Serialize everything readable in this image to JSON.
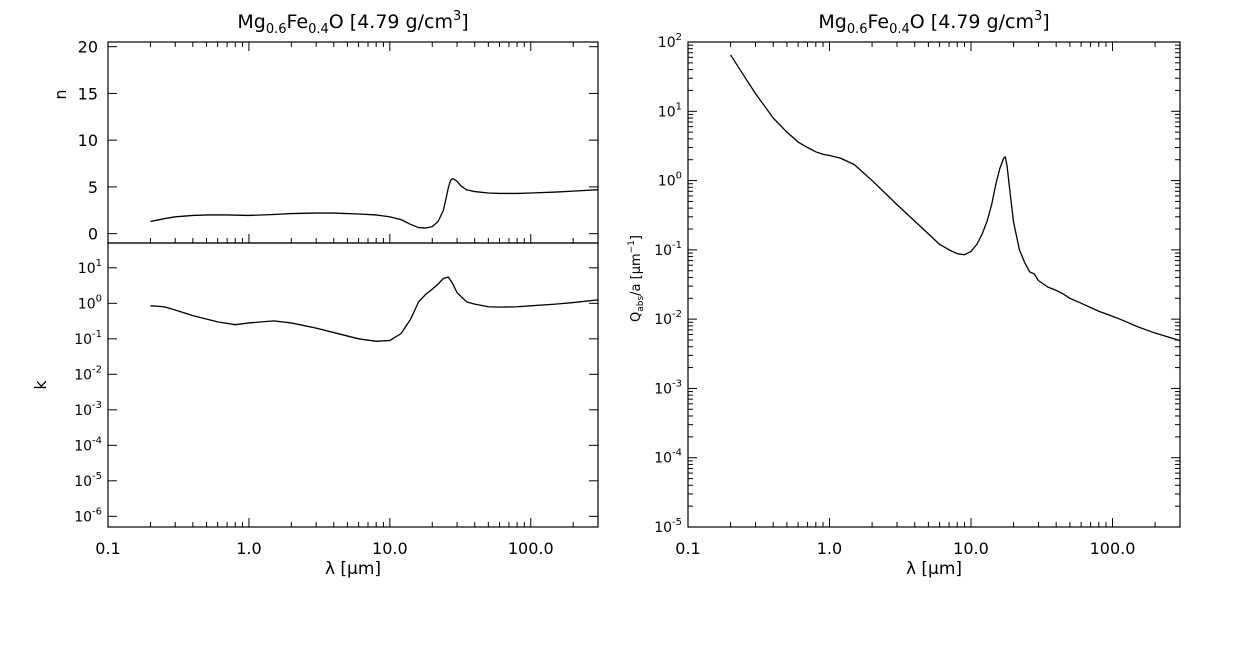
{
  "chart_data": [
    {
      "id": "n-panel",
      "type": "line",
      "title": {
        "base": "Mg",
        "sub1": "0.6",
        "mid": "Fe",
        "sub2": "0.4",
        "tail": "O [4.79 g/cm",
        "sup": "3",
        "end": "]"
      },
      "xlabel": "",
      "ylabel": "n",
      "xscale": "log",
      "yscale": "linear",
      "xlim": [
        0.1,
        300
      ],
      "ylim": [
        -1,
        20.5
      ],
      "x_tick_labels": [],
      "y_ticks": [
        0,
        5,
        10,
        15,
        20
      ],
      "y_tick_labels": [
        "0",
        "5",
        "10",
        "15",
        "20"
      ],
      "series": [
        {
          "x": [
            0.2,
            0.25,
            0.3,
            0.4,
            0.5,
            0.7,
            1.0,
            1.5,
            2.0,
            3.0,
            4.0,
            6.0,
            8.0,
            10.0,
            12.0,
            14.0,
            16.0,
            18.0,
            20.0,
            22.0,
            24.0,
            25.0,
            26.0,
            27.0,
            28.0,
            30.0,
            32.0,
            35.0,
            40.0,
            50.0,
            60.0,
            80.0,
            100.0,
            150.0,
            200.0,
            300.0
          ],
          "y": [
            1.3,
            1.6,
            1.8,
            1.95,
            2.0,
            2.0,
            1.95,
            2.05,
            2.15,
            2.2,
            2.2,
            2.1,
            2.0,
            1.8,
            1.5,
            1.0,
            0.65,
            0.6,
            0.75,
            1.3,
            2.5,
            3.7,
            4.9,
            5.7,
            5.9,
            5.6,
            5.1,
            4.7,
            4.5,
            4.35,
            4.3,
            4.3,
            4.35,
            4.45,
            4.55,
            4.7
          ]
        }
      ]
    },
    {
      "id": "k-panel",
      "type": "line",
      "title": "",
      "xlabel": "λ [μm]",
      "ylabel": "k",
      "xscale": "log",
      "yscale": "log",
      "xlim": [
        0.1,
        300
      ],
      "ylim": [
        5e-07,
        50
      ],
      "x_ticks": [
        0.1,
        1.0,
        10.0,
        100.0
      ],
      "x_tick_labels": [
        "0.1",
        "1.0",
        "10.0",
        "100.0"
      ],
      "y_ticks": [
        1e-06,
        1e-05,
        0.0001,
        0.001,
        0.01,
        0.1,
        1,
        10
      ],
      "y_tick_exponents": [
        "-6",
        "-5",
        "-4",
        "-3",
        "-2",
        "-1",
        "0",
        "1"
      ],
      "y_tick_base": "10",
      "series": [
        {
          "x": [
            0.2,
            0.25,
            0.3,
            0.4,
            0.6,
            0.8,
            1.0,
            1.5,
            2.0,
            3.0,
            4.0,
            6.0,
            8.0,
            10.0,
            12.0,
            14.0,
            16.0,
            18.0,
            20.0,
            22.0,
            24.0,
            26.0,
            28.0,
            30.0,
            35.0,
            40.0,
            50.0,
            60.0,
            80.0,
            100.0,
            150.0,
            200.0,
            300.0
          ],
          "y": [
            0.85,
            0.8,
            0.65,
            0.45,
            0.3,
            0.25,
            0.28,
            0.32,
            0.28,
            0.2,
            0.15,
            0.1,
            0.085,
            0.09,
            0.14,
            0.35,
            1.1,
            1.8,
            2.5,
            3.5,
            5.0,
            5.5,
            3.5,
            2.0,
            1.1,
            0.95,
            0.8,
            0.78,
            0.8,
            0.85,
            0.95,
            1.05,
            1.25
          ]
        }
      ]
    },
    {
      "id": "qabs-panel",
      "type": "line",
      "title": {
        "base": "Mg",
        "sub1": "0.6",
        "mid": "Fe",
        "sub2": "0.4",
        "tail": "O [4.79 g/cm",
        "sup": "3",
        "end": "]"
      },
      "xlabel": "λ [μm]",
      "ylabel": {
        "q": "Q",
        "qsub": "abs",
        "rest": "/a [μm",
        "sup": "−1",
        "end": "]"
      },
      "xscale": "log",
      "yscale": "log",
      "xlim": [
        0.1,
        300
      ],
      "ylim": [
        1e-05,
        100
      ],
      "x_ticks": [
        0.1,
        1.0,
        10.0,
        100.0
      ],
      "x_tick_labels": [
        "0.1",
        "1.0",
        "10.0",
        "100.0"
      ],
      "y_ticks": [
        1e-05,
        0.0001,
        0.001,
        0.01,
        0.1,
        1,
        10,
        100
      ],
      "y_tick_exponents": [
        "-5",
        "-4",
        "-3",
        "-2",
        "-1",
        "0",
        "1",
        "2"
      ],
      "y_tick_base": "10",
      "series": [
        {
          "x": [
            0.2,
            0.25,
            0.3,
            0.4,
            0.5,
            0.6,
            0.7,
            0.8,
            0.9,
            1.0,
            1.2,
            1.5,
            2.0,
            3.0,
            4.0,
            5.0,
            6.0,
            7.0,
            8.0,
            9.0,
            10.0,
            11.0,
            12.0,
            13.0,
            14.0,
            15.0,
            16.0,
            17.0,
            17.5,
            18.0,
            19.0,
            20.0,
            22.0,
            24.0,
            26.0,
            28.0,
            30.0,
            35.0,
            40.0,
            45.0,
            50.0,
            60.0,
            80.0,
            100.0,
            120.0,
            150.0,
            200.0,
            300.0
          ],
          "y": [
            65,
            32,
            18,
            8,
            5,
            3.6,
            3.0,
            2.6,
            2.4,
            2.3,
            2.1,
            1.7,
            1.0,
            0.45,
            0.26,
            0.17,
            0.12,
            0.1,
            0.088,
            0.085,
            0.095,
            0.12,
            0.17,
            0.26,
            0.45,
            0.9,
            1.5,
            2.1,
            2.2,
            1.6,
            0.6,
            0.25,
            0.1,
            0.065,
            0.048,
            0.045,
            0.036,
            0.029,
            0.026,
            0.023,
            0.02,
            0.017,
            0.013,
            0.011,
            0.0095,
            0.0078,
            0.0063,
            0.0049
          ]
        }
      ]
    }
  ]
}
